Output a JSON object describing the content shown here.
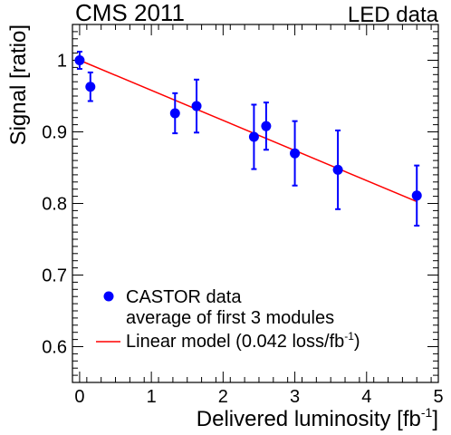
{
  "chart_data": {
    "type": "scatter",
    "title": "CMS 2011",
    "subtitle": "LED data",
    "xlabel": "Delivered luminosity [fb",
    "xlabel_sup": "-1",
    "xlabel_end": "]",
    "ylabel": "Signal [ratio]",
    "xlim": [
      -0.1,
      5.0
    ],
    "ylim": [
      0.55,
      1.05
    ],
    "x_ticks": [
      0,
      1,
      2,
      3,
      4,
      5
    ],
    "y_ticks": [
      0.6,
      0.7,
      0.8,
      0.9,
      1.0
    ],
    "x_tick_labels": [
      "0",
      "1",
      "2",
      "3",
      "4",
      "5"
    ],
    "y_tick_labels": [
      "0.6",
      "0.7",
      "0.8",
      "0.9",
      "1"
    ],
    "grid": false,
    "legend_position": "bottom-left",
    "series": [
      {
        "name": "CASTOR data",
        "name_line2": "average of first 3 modules",
        "kind": "points",
        "color": "#0000ff",
        "x": [
          0.0,
          0.15,
          1.33,
          1.63,
          2.43,
          2.6,
          3.0,
          3.6,
          4.7
        ],
        "y": [
          1.0,
          0.963,
          0.926,
          0.936,
          0.893,
          0.908,
          0.87,
          0.847,
          0.811
        ],
        "y_err": [
          0.012,
          0.02,
          0.028,
          0.037,
          0.045,
          0.033,
          0.045,
          0.055,
          0.042
        ]
      },
      {
        "name": "Linear model (0.042 loss/fb",
        "name_sup": "-1",
        "name_end": ")",
        "kind": "line",
        "color": "#ff0000",
        "x": [
          0.0,
          4.7
        ],
        "y": [
          1.0,
          0.8026
        ]
      }
    ]
  }
}
